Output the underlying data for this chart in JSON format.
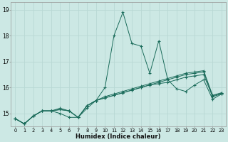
{
  "xlabel": "Humidex (Indice chaleur)",
  "ylabel": "",
  "background_color": "#cce8e4",
  "grid_color": "#b8d8d4",
  "line_color": "#1a6b5a",
  "x_values": [
    0,
    1,
    2,
    3,
    4,
    5,
    6,
    7,
    8,
    9,
    10,
    11,
    12,
    13,
    14,
    15,
    16,
    17,
    18,
    19,
    20,
    21,
    22,
    23
  ],
  "series": [
    [
      14.8,
      14.6,
      14.9,
      15.1,
      15.1,
      15.2,
      15.1,
      14.85,
      15.3,
      15.5,
      15.6,
      15.7,
      15.8,
      15.9,
      16.0,
      16.1,
      16.15,
      16.2,
      16.3,
      16.4,
      16.45,
      16.5,
      15.65,
      15.75
    ],
    [
      14.8,
      14.6,
      14.9,
      15.1,
      15.1,
      15.0,
      14.85,
      14.85,
      15.2,
      15.5,
      16.0,
      18.0,
      18.9,
      17.7,
      17.6,
      16.55,
      17.8,
      16.3,
      15.95,
      15.85,
      16.1,
      16.3,
      15.55,
      15.75
    ],
    [
      14.8,
      14.6,
      14.9,
      15.1,
      15.1,
      15.15,
      15.1,
      14.85,
      15.3,
      15.5,
      15.65,
      15.75,
      15.85,
      15.95,
      16.05,
      16.15,
      16.25,
      16.35,
      16.45,
      16.55,
      16.6,
      16.65,
      15.7,
      15.8
    ],
    [
      14.8,
      14.6,
      14.9,
      15.1,
      15.1,
      15.15,
      15.1,
      14.85,
      15.3,
      15.5,
      15.6,
      15.7,
      15.8,
      15.9,
      16.0,
      16.1,
      16.2,
      16.3,
      16.4,
      16.5,
      16.55,
      16.6,
      15.68,
      15.78
    ]
  ],
  "ylim": [
    14.5,
    19.3
  ],
  "yticks": [
    15,
    16,
    17,
    18,
    19
  ],
  "xticks": [
    0,
    1,
    2,
    3,
    4,
    5,
    6,
    7,
    8,
    9,
    10,
    11,
    12,
    13,
    14,
    15,
    16,
    17,
    18,
    19,
    20,
    21,
    22,
    23
  ]
}
